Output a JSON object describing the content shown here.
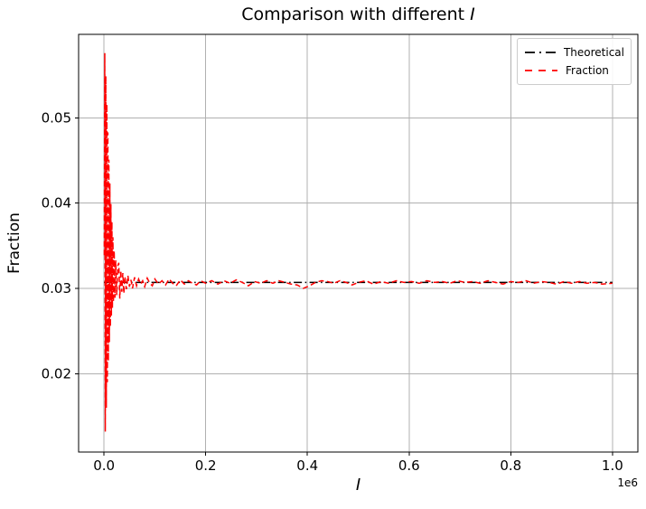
{
  "figure": {
    "background": "#ffffff",
    "title_prefix": "Comparison with different ",
    "title_var": "I"
  },
  "chart_data": {
    "type": "line",
    "title": "Comparison with different I",
    "xlabel": "I",
    "ylabel": "Fraction",
    "x_offset_text": "1e6",
    "grid": true,
    "grid_color": "#b0b0b0",
    "legend_position": "upper right",
    "xlim": [
      -50000,
      1050000
    ],
    "ylim": [
      0.0108,
      0.0598
    ],
    "x_ticks": [
      0,
      200000,
      400000,
      600000,
      800000,
      1000000
    ],
    "x_tick_labels": [
      "0.0",
      "0.2",
      "0.4",
      "0.6",
      "0.8",
      "1.0"
    ],
    "y_ticks": [
      0.02,
      0.03,
      0.04,
      0.05
    ],
    "y_tick_labels": [
      "0.02",
      "0.03",
      "0.04",
      "0.05"
    ],
    "series": [
      {
        "name": "Theoretical",
        "color": "#000000",
        "linestyle": "dashdot",
        "points": [
          [
            0,
            0.0307
          ],
          [
            1000000,
            0.0307
          ]
        ]
      },
      {
        "name": "Fraction",
        "color": "#ff0000",
        "linestyle": "dashed",
        "points": [
          [
            500,
            0.0339
          ],
          [
            1500,
            0.0576
          ],
          [
            2500,
            0.0132
          ],
          [
            3500,
            0.0549
          ],
          [
            4500,
            0.016
          ],
          [
            5500,
            0.0516
          ],
          [
            6500,
            0.019
          ],
          [
            7500,
            0.0483
          ],
          [
            8500,
            0.0215
          ],
          [
            9500,
            0.0451
          ],
          [
            10500,
            0.0237
          ],
          [
            11500,
            0.0423
          ],
          [
            12500,
            0.0255
          ],
          [
            13500,
            0.0399
          ],
          [
            14500,
            0.0268
          ],
          [
            15500,
            0.0378
          ],
          [
            16500,
            0.0277
          ],
          [
            17500,
            0.036
          ],
          [
            18500,
            0.0284
          ],
          [
            20000,
            0.0344
          ],
          [
            21500,
            0.0289
          ],
          [
            23000,
            0.0333
          ],
          [
            25000,
            0.0292
          ],
          [
            27000,
            0.0326
          ],
          [
            29000,
            0.033
          ],
          [
            31000,
            0.0288
          ],
          [
            33000,
            0.0321
          ],
          [
            35000,
            0.0296
          ],
          [
            37000,
            0.0318
          ],
          [
            39000,
            0.0294
          ],
          [
            41000,
            0.0314
          ],
          [
            44000,
            0.0299
          ],
          [
            47000,
            0.0315
          ],
          [
            50000,
            0.0302
          ],
          [
            53000,
            0.031
          ],
          [
            56000,
            0.03
          ],
          [
            60000,
            0.0313
          ],
          [
            64000,
            0.0303
          ],
          [
            68000,
            0.0311
          ],
          [
            72000,
            0.0305
          ],
          [
            76000,
            0.0309
          ],
          [
            80000,
            0.0302
          ],
          [
            85000,
            0.0312
          ],
          [
            90000,
            0.0306
          ],
          [
            95000,
            0.0303
          ],
          [
            100000,
            0.0311
          ],
          [
            107000,
            0.0305
          ],
          [
            114000,
            0.0309
          ],
          [
            121000,
            0.0304
          ],
          [
            128000,
            0.0311
          ],
          [
            135000,
            0.0306
          ],
          [
            142000,
            0.0303
          ],
          [
            150000,
            0.031
          ],
          [
            158000,
            0.0305
          ],
          [
            166000,
            0.0309
          ],
          [
            174000,
            0.0306
          ],
          [
            182000,
            0.0304
          ],
          [
            190000,
            0.0309
          ],
          [
            200000,
            0.0306
          ],
          [
            212000,
            0.0309
          ],
          [
            224000,
            0.0305
          ],
          [
            236000,
            0.0309
          ],
          [
            248000,
            0.0306
          ],
          [
            260000,
            0.031
          ],
          [
            272000,
            0.0307
          ],
          [
            284000,
            0.0303
          ],
          [
            296000,
            0.0308
          ],
          [
            308000,
            0.0306
          ],
          [
            320000,
            0.0309
          ],
          [
            332000,
            0.0306
          ],
          [
            344000,
            0.0309
          ],
          [
            356000,
            0.0307
          ],
          [
            368000,
            0.0305
          ],
          [
            380000,
            0.0304
          ],
          [
            392000,
            0.03
          ],
          [
            404000,
            0.0303
          ],
          [
            416000,
            0.0307
          ],
          [
            428000,
            0.0309
          ],
          [
            440000,
            0.0308
          ],
          [
            452000,
            0.0306
          ],
          [
            464000,
            0.0309
          ],
          [
            476000,
            0.0307
          ],
          [
            488000,
            0.0304
          ],
          [
            500000,
            0.0307
          ],
          [
            515000,
            0.0309
          ],
          [
            530000,
            0.0305
          ],
          [
            545000,
            0.0308
          ],
          [
            560000,
            0.0306
          ],
          [
            575000,
            0.0309
          ],
          [
            590000,
            0.0307
          ],
          [
            605000,
            0.0308
          ],
          [
            620000,
            0.0306
          ],
          [
            635000,
            0.0309
          ],
          [
            650000,
            0.0307
          ],
          [
            665000,
            0.0308
          ],
          [
            680000,
            0.0306
          ],
          [
            695000,
            0.0309
          ],
          [
            710000,
            0.0307
          ],
          [
            725000,
            0.0308
          ],
          [
            740000,
            0.0306
          ],
          [
            755000,
            0.0309
          ],
          [
            770000,
            0.0307
          ],
          [
            785000,
            0.0305
          ],
          [
            800000,
            0.0308
          ],
          [
            815000,
            0.0307
          ],
          [
            830000,
            0.0309
          ],
          [
            845000,
            0.0306
          ],
          [
            860000,
            0.0308
          ],
          [
            875000,
            0.0307
          ],
          [
            890000,
            0.0305
          ],
          [
            905000,
            0.0308
          ],
          [
            920000,
            0.0306
          ],
          [
            935000,
            0.0308
          ],
          [
            950000,
            0.0306
          ],
          [
            965000,
            0.0307
          ],
          [
            980000,
            0.0305
          ],
          [
            1000000,
            0.0306
          ]
        ]
      }
    ]
  }
}
